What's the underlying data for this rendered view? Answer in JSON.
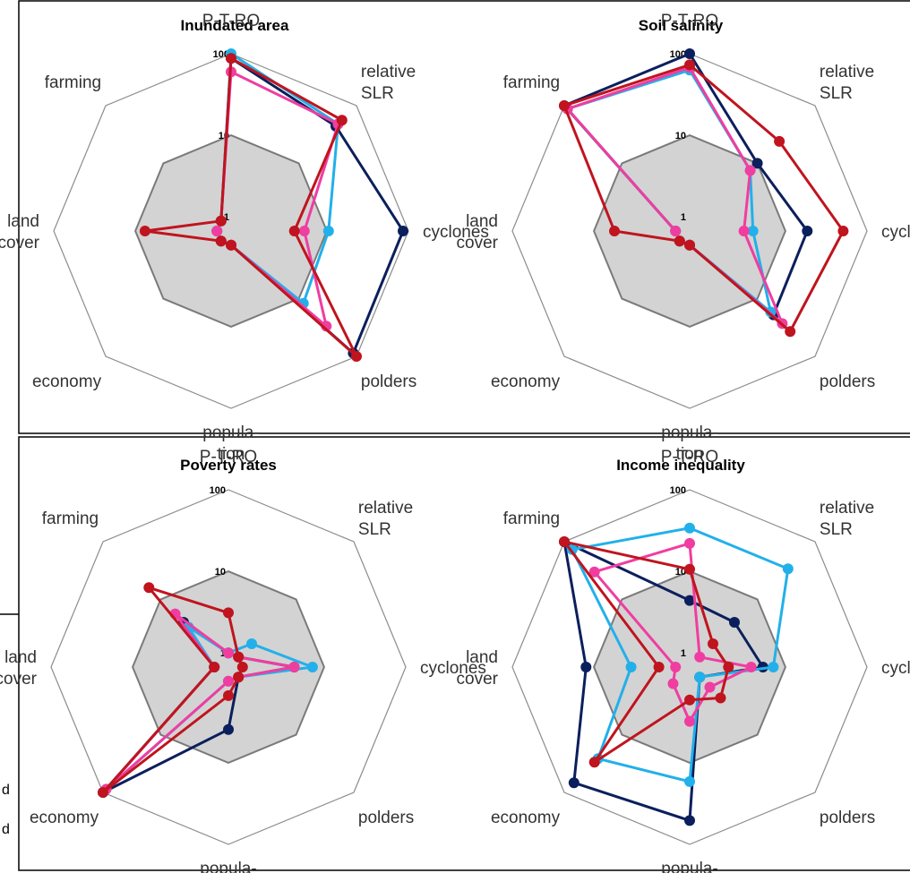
{
  "colors": {
    "series1": "#0b1f5c",
    "series2": "#22b0ea",
    "series3": "#f03da0",
    "series4": "#c0141e",
    "ring": "#8c8c8c",
    "inner_fill": "#d3d3d3",
    "inner_stroke": "#7a7a7a"
  },
  "legend_fragments": [
    "d",
    "d"
  ],
  "chart_data": [
    {
      "type": "radar",
      "title": "Inundated area",
      "scale": "log",
      "rlim": [
        1,
        100
      ],
      "ticks": [
        "1",
        "10",
        "100"
      ],
      "axes": [
        {
          "label": [
            "P-T-RO"
          ]
        },
        {
          "label": [
            "relative",
            "SLR"
          ]
        },
        {
          "label": [
            "cyclones"
          ]
        },
        {
          "label": [
            "polders"
          ]
        },
        {
          "label": [
            "popula-",
            "tion"
          ]
        },
        {
          "label": [
            "economy"
          ]
        },
        {
          "label": [
            "land",
            "cover"
          ]
        },
        {
          "label": [
            "farming"
          ]
        }
      ],
      "series": [
        {
          "color_key": "series1",
          "values": [
            88,
            44,
            86,
            88,
            1,
            1,
            1,
            1
          ]
        },
        {
          "color_key": "series2",
          "values": [
            100,
            48,
            10.5,
            12,
            1,
            1,
            1,
            1
          ]
        },
        {
          "color_key": "series3",
          "values": [
            60,
            48,
            5.3,
            30,
            1,
            1,
            1,
            1
          ]
        },
        {
          "color_key": "series4",
          "values": [
            88,
            56,
            4.0,
            100,
            1,
            1,
            7.6,
            1
          ]
        }
      ]
    },
    {
      "type": "radar",
      "title": "Soil salinity",
      "scale": "log",
      "rlim": [
        1,
        100
      ],
      "ticks": [
        "1",
        "10",
        "100"
      ],
      "axes": [
        {
          "label": [
            "P-T-RO"
          ]
        },
        {
          "label": [
            "relative",
            "SLR"
          ]
        },
        {
          "label": [
            "cyclones"
          ]
        },
        {
          "label": [
            "polders"
          ]
        },
        {
          "label": [
            "popula-",
            "tion"
          ]
        },
        {
          "label": [
            "economy"
          ]
        },
        {
          "label": [
            "land",
            "cover"
          ]
        },
        {
          "label": [
            "farming"
          ]
        }
      ],
      "series": [
        {
          "color_key": "series1",
          "values": [
            100,
            10,
            18.5,
            19,
            1,
            1,
            1,
            100
          ]
        },
        {
          "color_key": "series2",
          "values": [
            63,
            7.5,
            4.0,
            17,
            1,
            1,
            1,
            88
          ]
        },
        {
          "color_key": "series3",
          "values": [
            68,
            7.5,
            3.1,
            27,
            1,
            1,
            1,
            88
          ]
        },
        {
          "color_key": "series4",
          "values": [
            73,
            24,
            51,
            37,
            1,
            1,
            5.6,
            100
          ]
        }
      ]
    },
    {
      "type": "radar",
      "title": "Poverty rates",
      "scale": "log",
      "rlim": [
        1,
        100
      ],
      "ticks": [
        "1",
        "10",
        "100"
      ],
      "axes": [
        {
          "label": [
            "P-T-RO"
          ]
        },
        {
          "label": [
            "relative",
            "SLR"
          ]
        },
        {
          "label": [
            "cyclones"
          ]
        },
        {
          "label": [
            "polders"
          ]
        },
        {
          "label": [
            "popula-",
            "tion"
          ]
        },
        {
          "label": [
            "economy"
          ]
        },
        {
          "label": [
            "land",
            "cover"
          ]
        },
        {
          "label": [
            "farming"
          ]
        }
      ],
      "series": [
        {
          "color_key": "series1",
          "values": [
            1,
            1,
            4.3,
            1,
            3.9,
            100,
            1,
            4.0
          ]
        },
        {
          "color_key": "series2",
          "values": [
            1,
            1.7,
            7.2,
            1,
            1,
            100,
            1,
            3.3
          ]
        },
        {
          "color_key": "series3",
          "values": [
            1,
            1,
            4.3,
            1,
            1,
            88,
            1,
            5.6
          ]
        },
        {
          "color_key": "series4",
          "values": [
            3.1,
            1,
            1,
            1,
            1.5,
            100,
            1,
            16
          ]
        }
      ]
    },
    {
      "type": "radar",
      "title": "Income inequality",
      "scale": "log",
      "rlim": [
        1,
        100
      ],
      "ticks": [
        "1",
        "10",
        "100"
      ],
      "axes": [
        {
          "label": [
            "P-T-RO"
          ]
        },
        {
          "label": [
            "relative",
            "SLR"
          ]
        },
        {
          "label": [
            "cyclones"
          ]
        },
        {
          "label": [
            "polders"
          ]
        },
        {
          "label": [
            "popula-",
            "tion"
          ]
        },
        {
          "label": [
            "economy"
          ]
        },
        {
          "label": [
            "land",
            "cover"
          ]
        },
        {
          "label": [
            "farming"
          ]
        }
      ],
      "series": [
        {
          "color_key": "series1",
          "values": [
            4.4,
            4.0,
            5.3,
            1,
            51,
            68,
            12.5,
            100
          ]
        },
        {
          "color_key": "series2",
          "values": [
            34,
            34,
            7.1,
            1,
            17,
            26,
            3.5,
            73
          ]
        },
        {
          "color_key": "series3",
          "values": [
            22,
            1,
            3.8,
            1.5,
            3.1,
            1.3,
            1,
            30
          ]
        },
        {
          "color_key": "series4",
          "values": [
            10.6,
            1.7,
            2.0,
            2.3,
            1.7,
            30,
            1.6,
            100
          ]
        }
      ]
    }
  ]
}
